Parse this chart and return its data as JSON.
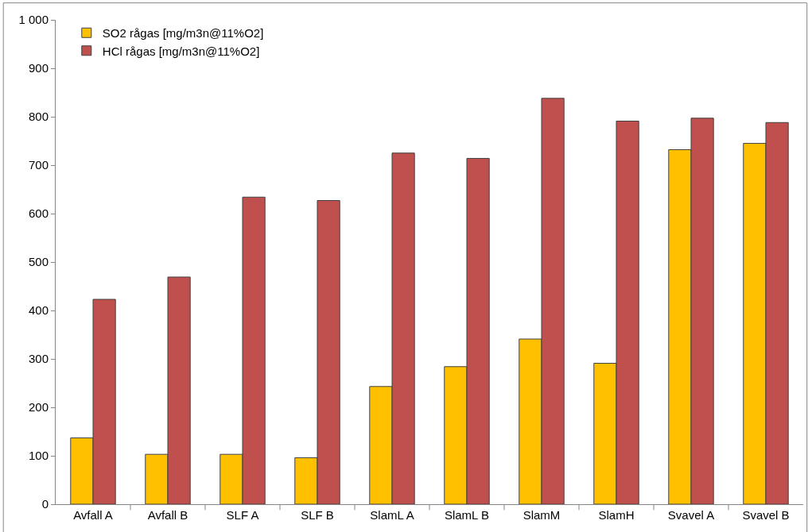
{
  "chart_data": {
    "type": "bar",
    "categories": [
      "Avfall A",
      "Avfall B",
      "SLF A",
      "SLF B",
      "SlamL A",
      "SlamL B",
      "SlamM",
      "SlamH",
      "Svavel A",
      "Svavel B"
    ],
    "series": [
      {
        "name": "SO2 rågas [mg/m3n@11%O2]",
        "color": "#ffc000",
        "values": [
          137,
          103,
          103,
          96,
          243,
          284,
          341,
          291,
          732,
          745
        ]
      },
      {
        "name": "HCl rågas [mg/m3n@11%O2]",
        "color": "#c0504d",
        "values": [
          423,
          469,
          634,
          627,
          725,
          714,
          838,
          791,
          797,
          788
        ]
      }
    ],
    "ylim": [
      0,
      1000
    ],
    "yticks": [
      0,
      100,
      200,
      300,
      400,
      500,
      600,
      700,
      800,
      900,
      {
        "value": 1000,
        "label": "1 000"
      }
    ],
    "grid": false,
    "legend": "top left"
  }
}
